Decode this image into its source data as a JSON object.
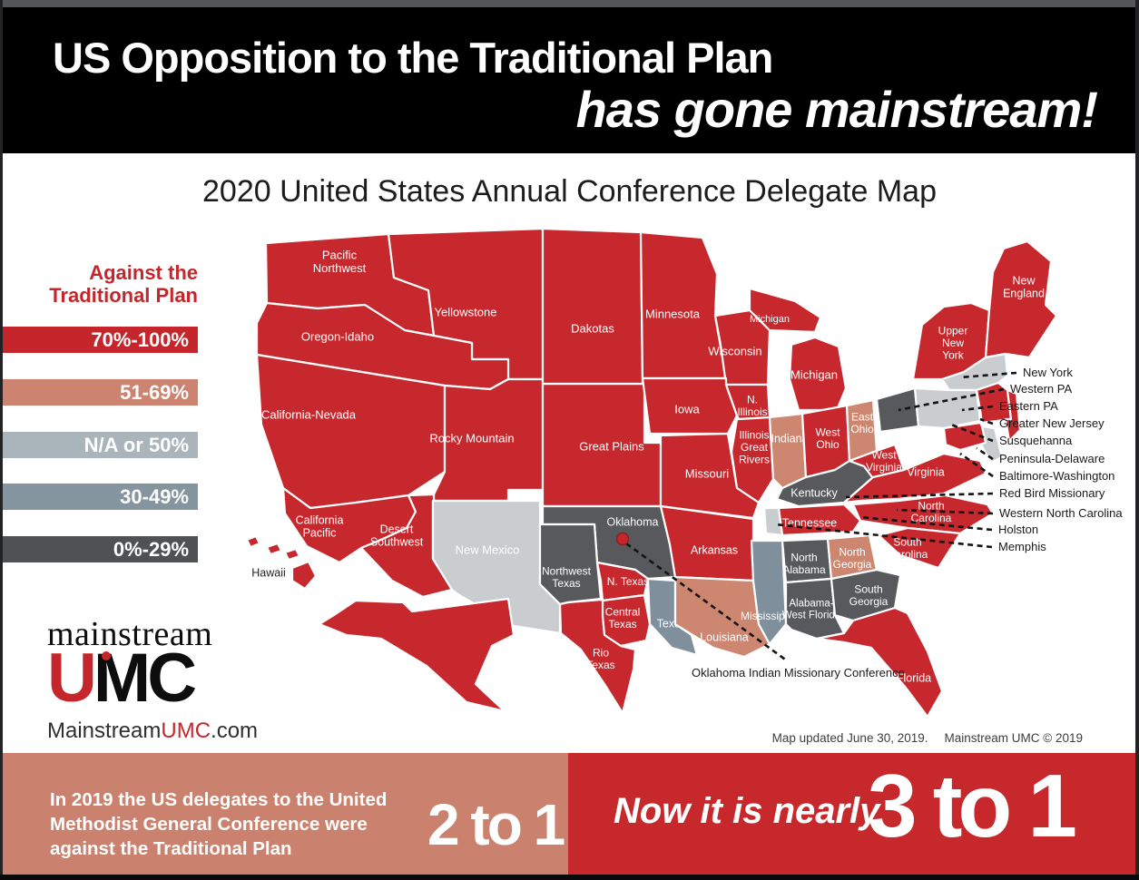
{
  "header": {
    "line1": "US Opposition to the Traditional Plan",
    "line2": "has gone mainstream!"
  },
  "map": {
    "title": "2020 United States Annual Conference Delegate Map",
    "legend": {
      "title": [
        "Against the",
        "Traditional Plan"
      ],
      "items": [
        {
          "label": "70%-100%",
          "color": "#c5262b"
        },
        {
          "label": "51-69%",
          "color": "#cc8470"
        },
        {
          "label": "N/A or 50%",
          "color": "#aab4bb"
        },
        {
          "label": "30-49%",
          "color": "#8495a0"
        },
        {
          "label": "0%-29%",
          "color": "#4f5153"
        }
      ]
    },
    "regions": [
      {
        "id": "pacific-northwest",
        "name": "Pacific Northwest",
        "category": "70-100",
        "label_lines": [
          "Pacific",
          "Northwest"
        ]
      },
      {
        "id": "yellowstone",
        "name": "Yellowstone",
        "category": "70-100",
        "label_lines": [
          "Yellowstone"
        ]
      },
      {
        "id": "oregon-idaho",
        "name": "Oregon-Idaho",
        "category": "70-100",
        "label_lines": [
          "Oregon-Idaho"
        ]
      },
      {
        "id": "california-nevada",
        "name": "California-Nevada",
        "category": "70-100",
        "label_lines": [
          "California-Nevada"
        ]
      },
      {
        "id": "rocky-mountain",
        "name": "Rocky Mountain",
        "category": "70-100",
        "label_lines": [
          "Rocky Mountain"
        ]
      },
      {
        "id": "california-pacific",
        "name": "California Pacific",
        "category": "70-100",
        "label_lines": [
          "California",
          "Pacific"
        ]
      },
      {
        "id": "desert-southwest",
        "name": "Desert Southwest",
        "category": "70-100",
        "label_lines": [
          "Desert",
          "Southwest"
        ]
      },
      {
        "id": "new-mexico",
        "name": "New Mexico",
        "category": "na",
        "label_lines": [
          "New Mexico"
        ]
      },
      {
        "id": "great-plains",
        "name": "Great Plains",
        "category": "70-100",
        "label_lines": [
          "Great Plains"
        ]
      },
      {
        "id": "dakotas",
        "name": "Dakotas",
        "category": "70-100",
        "label_lines": [
          "Dakotas"
        ]
      },
      {
        "id": "minnesota",
        "name": "Minnesota",
        "category": "70-100",
        "label_lines": [
          "Minnesota"
        ]
      },
      {
        "id": "wisconsin",
        "name": "Wisconsin",
        "category": "70-100",
        "label_lines": [
          "Wisconsin"
        ]
      },
      {
        "id": "michigan-up",
        "name": "Michigan",
        "category": "70-100",
        "label_lines": [
          "Michigan"
        ]
      },
      {
        "id": "michigan",
        "name": "Michigan",
        "category": "70-100",
        "label_lines": [
          "Michigan"
        ]
      },
      {
        "id": "iowa",
        "name": "Iowa",
        "category": "70-100",
        "label_lines": [
          "Iowa"
        ]
      },
      {
        "id": "n-illinois",
        "name": "N. Illinois",
        "category": "70-100",
        "label_lines": [
          "N.",
          "Illinois"
        ]
      },
      {
        "id": "illinois-great-rivers",
        "name": "Illinois Great Rivers",
        "category": "70-100",
        "label_lines": [
          "Illinois",
          "Great",
          "Rivers"
        ]
      },
      {
        "id": "indiana",
        "name": "Indiana",
        "category": "51-69",
        "label_lines": [
          "Indiana"
        ]
      },
      {
        "id": "west-ohio",
        "name": "West Ohio",
        "category": "70-100",
        "label_lines": [
          "West",
          "Ohio"
        ]
      },
      {
        "id": "east-ohio",
        "name": "East Ohio",
        "category": "51-69",
        "label_lines": [
          "East",
          "Ohio"
        ]
      },
      {
        "id": "missouri",
        "name": "Missouri",
        "category": "70-100",
        "label_lines": [
          "Missouri"
        ]
      },
      {
        "id": "kentucky",
        "name": "Kentucky",
        "category": "0-29",
        "label_lines": [
          "Kentucky"
        ]
      },
      {
        "id": "west-virginia",
        "name": "West Virginia",
        "category": "70-100",
        "label_lines": [
          "West",
          "Virginia"
        ]
      },
      {
        "id": "virginia",
        "name": "Virginia",
        "category": "70-100",
        "label_lines": [
          "Virginia"
        ]
      },
      {
        "id": "upper-new-york",
        "name": "Upper New York",
        "category": "70-100",
        "label_lines": [
          "Upper",
          "New",
          "York"
        ]
      },
      {
        "id": "new-england",
        "name": "New England",
        "category": "70-100",
        "label_lines": [
          "New",
          "England"
        ]
      },
      {
        "id": "new-york-conf",
        "name": "New York",
        "category": "na"
      },
      {
        "id": "western-pa",
        "name": "Western PA",
        "category": "0-29"
      },
      {
        "id": "susquehanna",
        "name": "Susquehanna",
        "category": "na"
      },
      {
        "id": "eastern-pa",
        "name": "Eastern PA",
        "category": "70-100"
      },
      {
        "id": "greater-new-jersey",
        "name": "Greater New Jersey",
        "category": "70-100"
      },
      {
        "id": "peninsula-delaware",
        "name": "Peninsula-Delaware",
        "category": "na"
      },
      {
        "id": "baltimore-washington",
        "name": "Baltimore-Washington",
        "category": "70-100"
      },
      {
        "id": "tennessee",
        "name": "Tennessee",
        "category": "70-100",
        "label_lines": [
          "Tennessee"
        ]
      },
      {
        "id": "memphis",
        "name": "Memphis",
        "category": "na"
      },
      {
        "id": "north-carolina",
        "name": "North Carolina",
        "category": "70-100",
        "label_lines": [
          "North",
          "Carolina"
        ]
      },
      {
        "id": "south-carolina",
        "name": "South Carolina",
        "category": "70-100",
        "label_lines": [
          "South",
          "Carolina"
        ]
      },
      {
        "id": "oklahoma",
        "name": "Oklahoma",
        "category": "0-29",
        "label_lines": [
          "Oklahoma"
        ]
      },
      {
        "id": "northwest-texas",
        "name": "Northwest Texas",
        "category": "0-29",
        "label_lines": [
          "Northwest",
          "Texas"
        ]
      },
      {
        "id": "n-texas",
        "name": "N. Texas",
        "category": "70-100",
        "label_lines": [
          "N. Texas"
        ]
      },
      {
        "id": "central-texas",
        "name": "Central Texas",
        "category": "70-100",
        "label_lines": [
          "Central",
          "Texas"
        ]
      },
      {
        "id": "rio-texas",
        "name": "Rio Texas",
        "category": "70-100",
        "label_lines": [
          "Rio",
          "Texas"
        ]
      },
      {
        "id": "texas",
        "name": "Texas",
        "category": "30-49",
        "label_lines": [
          "Texas"
        ]
      },
      {
        "id": "arkansas",
        "name": "Arkansas",
        "category": "70-100",
        "label_lines": [
          "Arkansas"
        ]
      },
      {
        "id": "louisiana",
        "name": "Louisiana",
        "category": "51-69",
        "label_lines": [
          "Louisiana"
        ]
      },
      {
        "id": "mississippi",
        "name": "Mississippi",
        "category": "30-49",
        "label_lines": [
          "Mississippi"
        ]
      },
      {
        "id": "north-alabama",
        "name": "North Alabama",
        "category": "0-29",
        "label_lines": [
          "North",
          "Alabama"
        ]
      },
      {
        "id": "alabama-west-florida",
        "name": "Alabama-West Florida",
        "category": "0-29",
        "label_lines": [
          "Alabama-",
          "West Florida"
        ]
      },
      {
        "id": "north-georgia",
        "name": "North Georgia",
        "category": "51-69",
        "label_lines": [
          "North",
          "Georgia"
        ]
      },
      {
        "id": "south-georgia",
        "name": "South Georgia",
        "category": "0-29",
        "label_lines": [
          "South",
          "Georgia"
        ]
      },
      {
        "id": "florida",
        "name": "Florida",
        "category": "70-100",
        "label_lines": [
          "Florida"
        ]
      },
      {
        "id": "hawaii",
        "name": "Hawaii",
        "category": "70-100",
        "label_lines": [
          "Hawaii"
        ]
      },
      {
        "id": "alaska",
        "name": "Alaska",
        "category": "70-100",
        "label_lines": [
          "Alaska"
        ]
      }
    ],
    "callouts": [
      "New York",
      "Western PA",
      "Eastern PA",
      "Greater New Jersey",
      "Susquehanna",
      "Peninsula-Delaware",
      "Baltimore-Washington",
      "Red Bird Missionary",
      "Western North Carolina",
      "Holston",
      "Memphis"
    ],
    "special_callout": "Oklahoma Indian Missionary Conference",
    "attribution": {
      "updated": "Map updated June 30, 2019.",
      "copyright": "Mainstream UMC © 2019"
    }
  },
  "logo": {
    "word": "mainstream",
    "u": "U",
    "mc": "MC",
    "site_prefix": "Mainstream",
    "site_umc": "UMC",
    "site_suffix": ".com"
  },
  "footer": {
    "left_text": "In 2019 the US delegates to the United Methodist General Conference were against the Traditional Plan",
    "left_ratio": "2 to 1",
    "right_text": "Now it is nearly",
    "right_ratio": "3 to 1"
  },
  "colors": {
    "header_bg": "#000000",
    "accent_red": "#c5262b",
    "banner_left_bg": "#ca826e",
    "banner_right_bg": "#c7282b",
    "callout_line": "#141414",
    "categories": {
      "70-100": "#c7282d",
      "51-69": "#cd8771",
      "na": "#c9cdd0",
      "30-49": "#7f909c",
      "0-29": "#58595c"
    }
  }
}
